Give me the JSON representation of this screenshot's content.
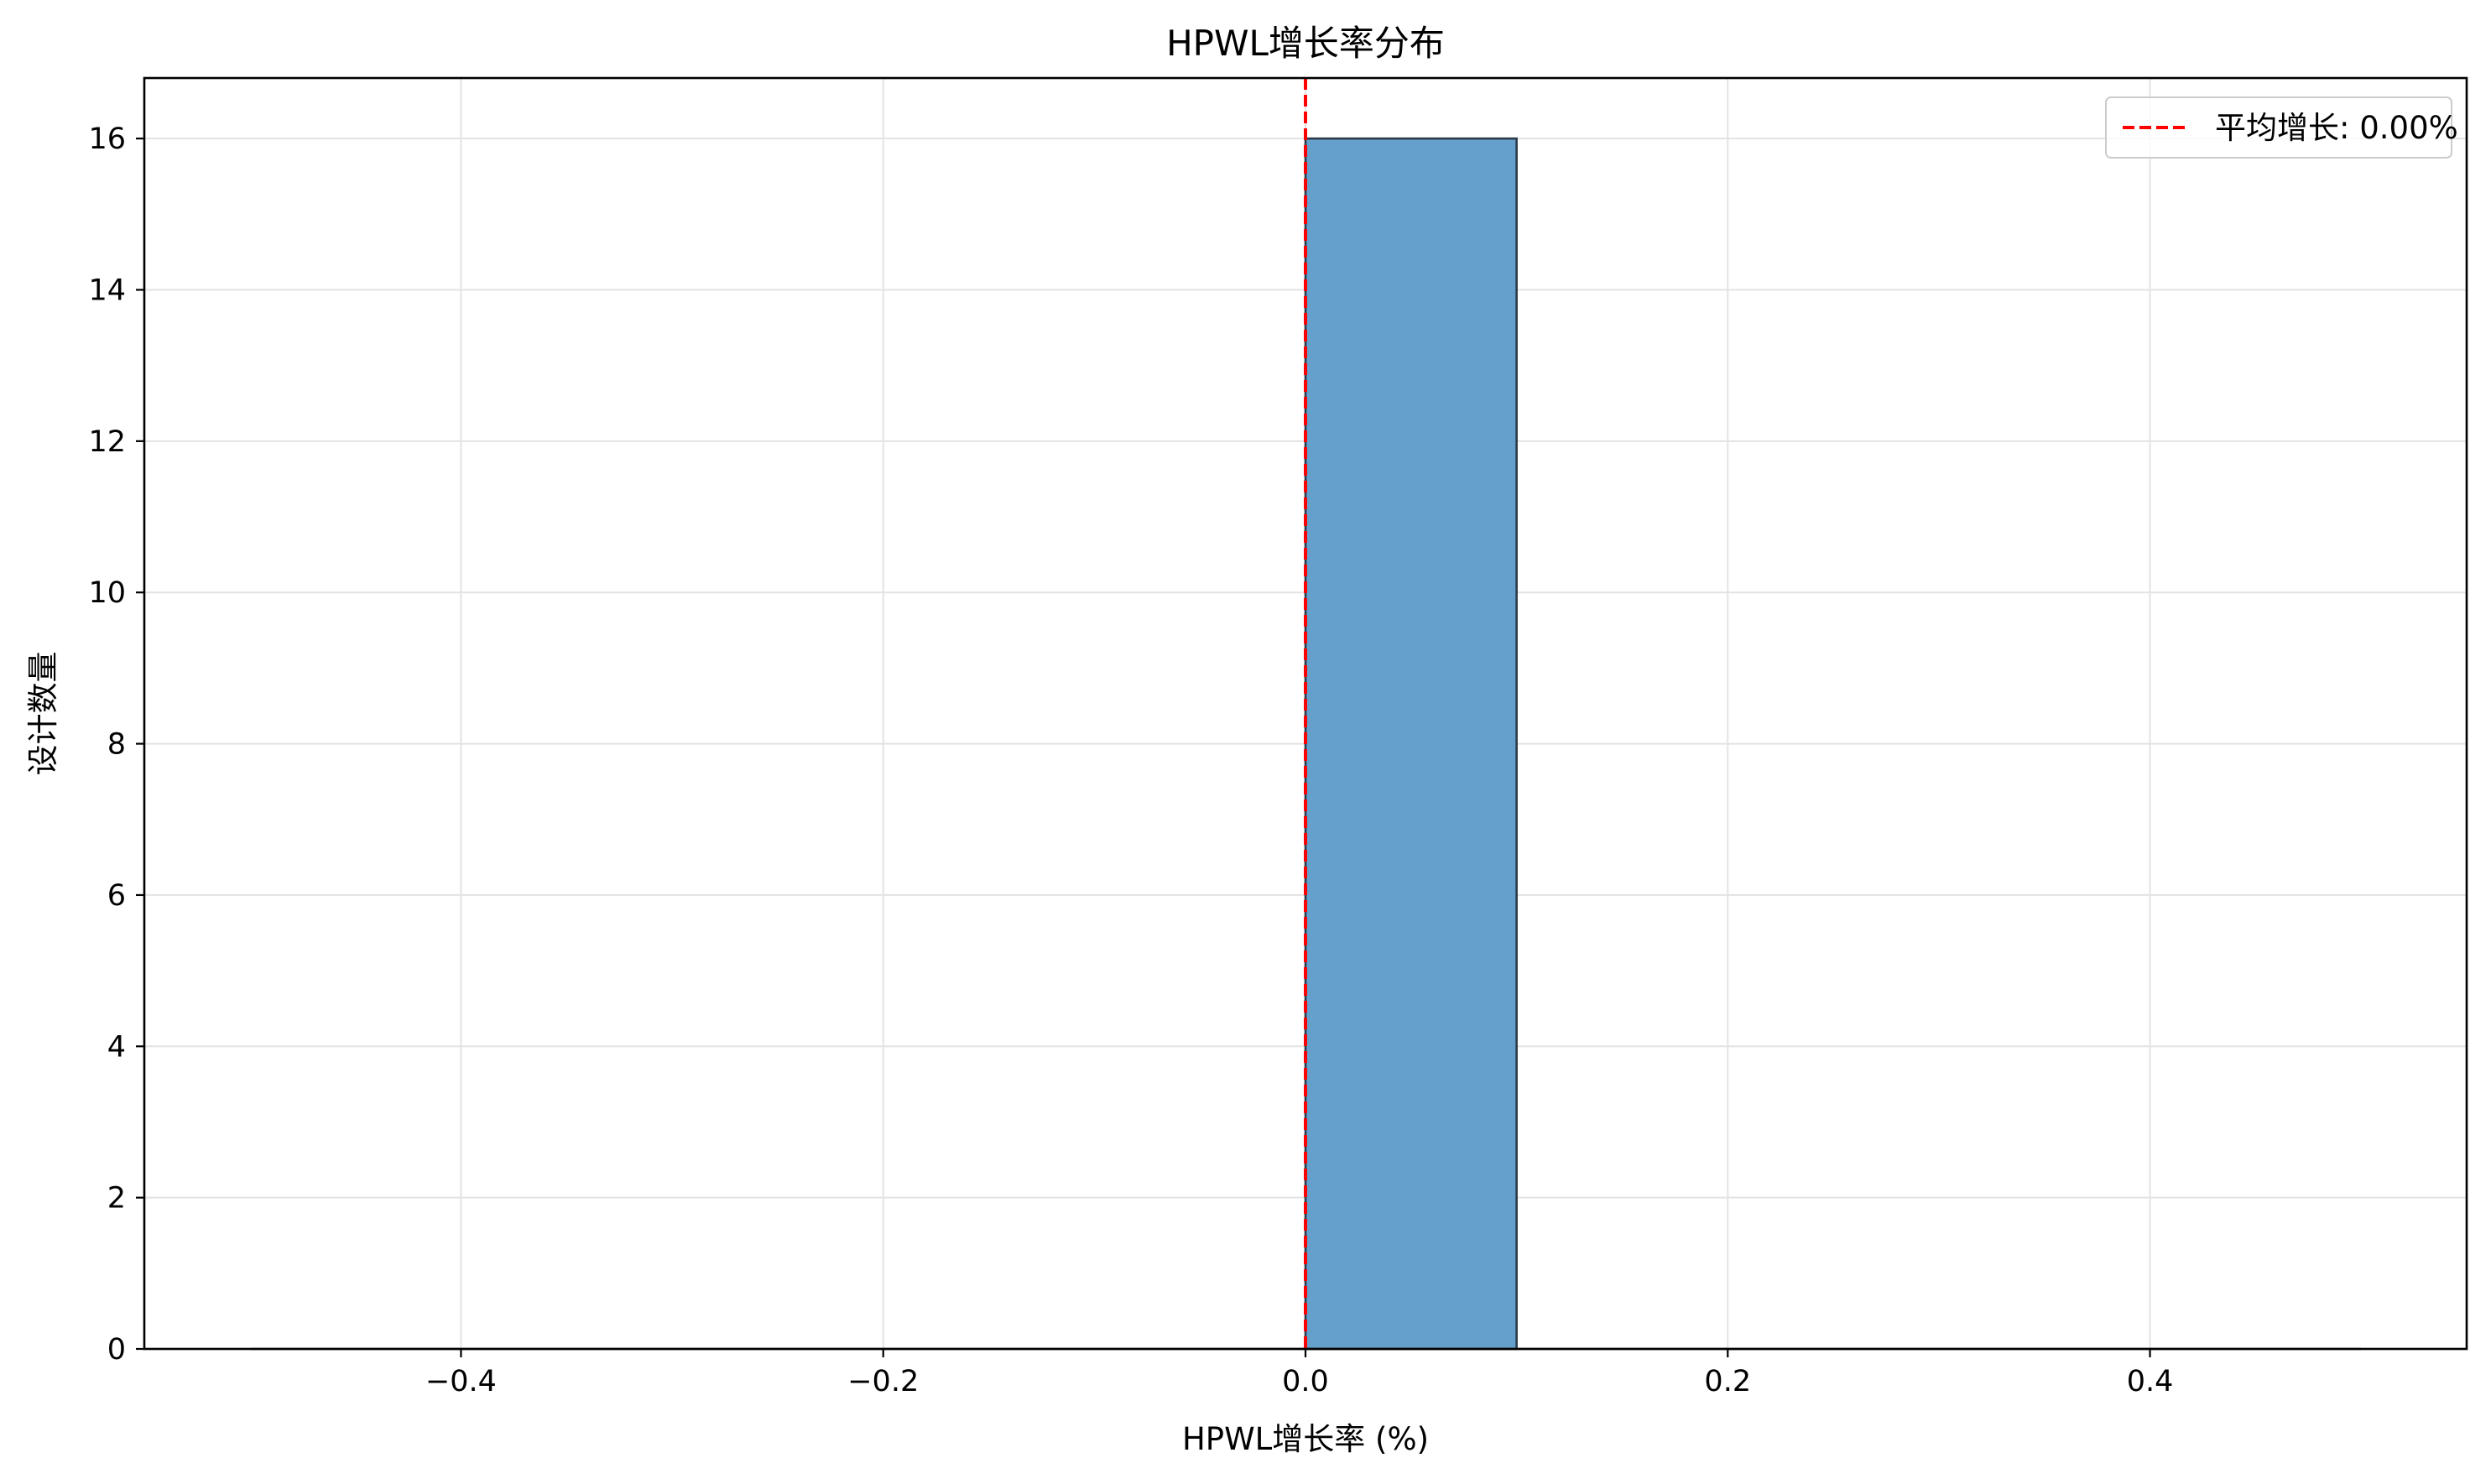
{
  "chart_data": {
    "type": "histogram",
    "title": "HPWL增长率分布",
    "xlabel": "HPWL增长率 (%)",
    "ylabel": "设计数量",
    "xlim": [
      -0.55,
      0.55
    ],
    "ylim": [
      0,
      16.8
    ],
    "x_ticks": [
      -0.4,
      -0.2,
      0.0,
      0.2,
      0.4
    ],
    "x_tick_labels": [
      "−0.4",
      "−0.2",
      "0.0",
      "0.2",
      "0.4"
    ],
    "y_ticks": [
      0,
      2,
      4,
      6,
      8,
      10,
      12,
      14,
      16
    ],
    "y_tick_labels": [
      "0",
      "2",
      "4",
      "6",
      "8",
      "10",
      "12",
      "14",
      "16"
    ],
    "bins": [
      {
        "x0": -0.5,
        "x1": -0.4,
        "count": 0
      },
      {
        "x0": -0.4,
        "x1": -0.3,
        "count": 0
      },
      {
        "x0": -0.3,
        "x1": -0.2,
        "count": 0
      },
      {
        "x0": -0.2,
        "x1": -0.1,
        "count": 0
      },
      {
        "x0": -0.1,
        "x1": 0.0,
        "count": 0
      },
      {
        "x0": 0.0,
        "x1": 0.1,
        "count": 16
      },
      {
        "x0": 0.1,
        "x1": 0.2,
        "count": 0
      },
      {
        "x0": 0.2,
        "x1": 0.3,
        "count": 0
      },
      {
        "x0": 0.3,
        "x1": 0.4,
        "count": 0
      },
      {
        "x0": 0.4,
        "x1": 0.5,
        "count": 0
      }
    ],
    "vline": {
      "x": 0.0,
      "label": "平均增长: 0.00%",
      "color": "#ff0000",
      "style": "dashed"
    },
    "bar_color": "#64a0cb",
    "bar_edge_color": "#2a3a4a",
    "grid": true,
    "legend_position": "top-right"
  }
}
